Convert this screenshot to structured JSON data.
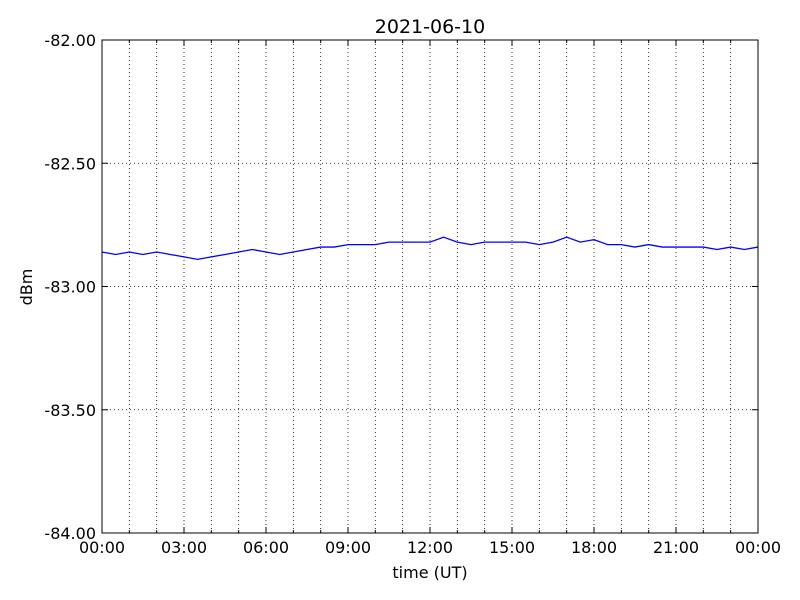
{
  "chart_data": {
    "type": "line",
    "title": "2021-06-10",
    "xlabel": "time (UT)",
    "ylabel": "dBm",
    "x": [
      0,
      0.5,
      1,
      1.5,
      2,
      2.5,
      3,
      3.5,
      4,
      4.5,
      5,
      5.5,
      6,
      6.5,
      7,
      7.5,
      8,
      8.5,
      9,
      9.5,
      10,
      10.5,
      11,
      11.5,
      12,
      12.5,
      13,
      13.5,
      14,
      14.5,
      15,
      15.5,
      16,
      16.5,
      17,
      17.5,
      18,
      18.5,
      19,
      19.5,
      20,
      20.5,
      21,
      21.5,
      22,
      22.5,
      23,
      23.5,
      24
    ],
    "series": [
      {
        "color": "#0000ff",
        "values": [
          -82.86,
          -82.87,
          -82.86,
          -82.87,
          -82.86,
          -82.87,
          -82.88,
          -82.89,
          -82.88,
          -82.87,
          -82.86,
          -82.85,
          -82.86,
          -82.87,
          -82.86,
          -82.85,
          -82.84,
          -82.84,
          -82.83,
          -82.83,
          -82.83,
          -82.82,
          -82.82,
          -82.82,
          -82.82,
          -82.8,
          -82.82,
          -82.83,
          -82.82,
          -82.82,
          -82.82,
          -82.82,
          -82.83,
          -82.82,
          -82.8,
          -82.82,
          -82.81,
          -82.83,
          -82.83,
          -82.84,
          -82.83,
          -82.84,
          -82.84,
          -82.84,
          -82.84,
          -82.85,
          -82.84,
          -82.85,
          -82.84
        ]
      }
    ],
    "xlim": [
      0,
      24
    ],
    "xticks": [
      {
        "value": 0,
        "label": "00:00"
      },
      {
        "value": 3,
        "label": "03:00"
      },
      {
        "value": 6,
        "label": "06:00"
      },
      {
        "value": 9,
        "label": "09:00"
      },
      {
        "value": 12,
        "label": "12:00"
      },
      {
        "value": 15,
        "label": "15:00"
      },
      {
        "value": 18,
        "label": "18:00"
      },
      {
        "value": 21,
        "label": "21:00"
      },
      {
        "value": 24,
        "label": "00:00"
      }
    ],
    "xminorticks": [
      1,
      2,
      4,
      5,
      7,
      8,
      10,
      11,
      13,
      14,
      16,
      17,
      19,
      20,
      22,
      23
    ],
    "ylim": [
      -84,
      -82
    ],
    "yticks": [
      {
        "value": -84,
        "label": "-84.00"
      },
      {
        "value": -83.5,
        "label": "-83.50"
      },
      {
        "value": -83,
        "label": "-83.00"
      },
      {
        "value": -82.5,
        "label": "-82.50"
      },
      {
        "value": -82,
        "label": "-82.00"
      }
    ],
    "grid": true
  }
}
